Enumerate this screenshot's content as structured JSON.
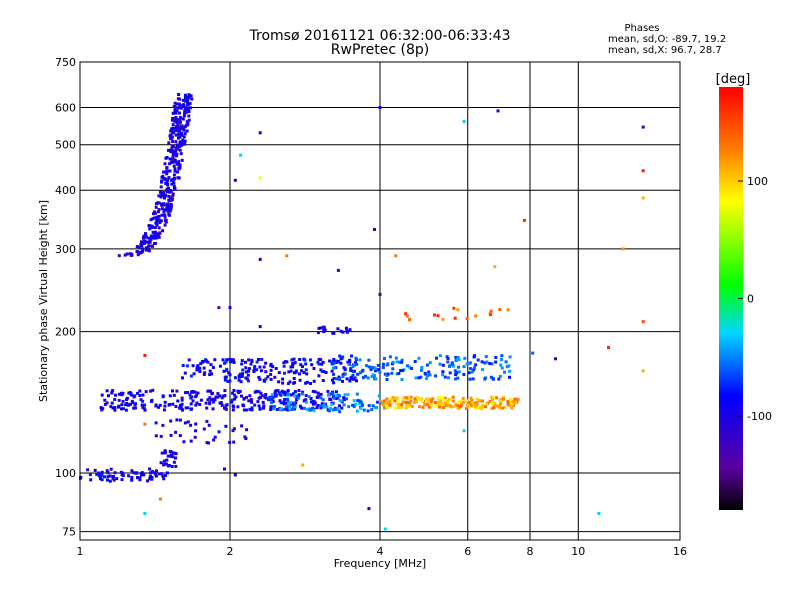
{
  "chart_data": {
    "type": "scatter",
    "title": "Tromsø 20161121 06:32:00-06:33:43",
    "subtitle": "RwPretec (8p)",
    "xlabel": "Frequency [MHz]",
    "ylabel": "Stationary phase Virtual Height [km]",
    "x_scale": "log",
    "y_scale": "log",
    "xlim": [
      1,
      16
    ],
    "ylim": [
      72,
      750
    ],
    "x_ticks": [
      {
        "value": 1,
        "label": "1"
      },
      {
        "value": 2,
        "label": "2"
      },
      {
        "value": 4,
        "label": "4"
      },
      {
        "value": 6,
        "label": "6"
      },
      {
        "value": 8,
        "label": "8"
      },
      {
        "value": 10,
        "label": "10"
      },
      {
        "value": 16,
        "label": "16"
      }
    ],
    "y_ticks": [
      {
        "value": 75,
        "label": "75"
      },
      {
        "value": 100,
        "label": "100"
      },
      {
        "value": 200,
        "label": "200"
      },
      {
        "value": 300,
        "label": "300"
      },
      {
        "value": 400,
        "label": "400"
      },
      {
        "value": 500,
        "label": "500"
      },
      {
        "value": 600,
        "label": "600"
      },
      {
        "value": 750,
        "label": "750"
      }
    ],
    "grid": true,
    "phase_stats": {
      "title": "Phases",
      "line_o": "mean, sd,O: -89.7, 19.2",
      "line_x": "mean, sd,X:  96.7, 28.7"
    },
    "colorbar": {
      "label": "[deg]",
      "range": [
        -180,
        180
      ],
      "ticks": [
        {
          "value": 100,
          "label": "100"
        },
        {
          "value": 0,
          "label": "0"
        },
        {
          "value": -100,
          "label": "-100"
        }
      ],
      "colors": [
        "#000000",
        "#5a00a0",
        "#0000ff",
        "#00d8ff",
        "#00ff00",
        "#ffff00",
        "#ff8000",
        "#ff0000"
      ]
    },
    "clusters": [
      {
        "name": "E-layer trace",
        "x": [
          1.0,
          1.5
        ],
        "y": [
          96,
          102
        ],
        "phase": -95,
        "count": 70
      },
      {
        "name": "Es spread low",
        "x": [
          1.45,
          1.56
        ],
        "y": [
          103,
          112
        ],
        "phase": -100,
        "count": 25
      },
      {
        "name": "F-layer O trace",
        "x": [
          1.22,
          1.62
        ],
        "y": [
          290,
          640
        ],
        "phase": -100,
        "count": 380
      },
      {
        "name": "Spread 140 km blue",
        "x": [
          1.1,
          3.4
        ],
        "y": [
          136,
          150
        ],
        "phase": -95,
        "count": 300
      },
      {
        "name": "Spread 160 km blue",
        "x": [
          1.6,
          3.6
        ],
        "y": [
          155,
          175
        ],
        "phase": -90,
        "count": 200
      },
      {
        "name": "Spread 140 km cyan",
        "x": [
          2.4,
          4.1
        ],
        "y": [
          135,
          148
        ],
        "phase": -50,
        "count": 90
      },
      {
        "name": "Spread 140 km yellow",
        "x": [
          4.0,
          7.6
        ],
        "y": [
          137,
          145
        ],
        "phase": 110,
        "count": 200
      },
      {
        "name": "Band 165 km mixed",
        "x": [
          3.2,
          7.3
        ],
        "y": [
          158,
          178
        ],
        "phase": -60,
        "count": 170
      },
      {
        "name": "Band 220 km orange",
        "x": [
          4.5,
          7.8
        ],
        "y": [
          212,
          225
        ],
        "phase": 140,
        "count": 16
      },
      {
        "name": "Band 200 km blue",
        "x": [
          3.0,
          3.5
        ],
        "y": [
          198,
          205
        ],
        "phase": -95,
        "count": 18
      },
      {
        "name": "Spread 120 km",
        "x": [
          1.4,
          2.2
        ],
        "y": [
          115,
          130
        ],
        "phase": -100,
        "count": 35
      }
    ],
    "outliers": [
      {
        "x": 2.3,
        "y": 530,
        "phase": -100
      },
      {
        "x": 4.0,
        "y": 600,
        "phase": -100
      },
      {
        "x": 5.9,
        "y": 560,
        "phase": -30
      },
      {
        "x": 6.9,
        "y": 590,
        "phase": -110
      },
      {
        "x": 13.5,
        "y": 545,
        "phase": -110
      },
      {
        "x": 13.5,
        "y": 440,
        "phase": 170
      },
      {
        "x": 13.5,
        "y": 385,
        "phase": 110
      },
      {
        "x": 12.3,
        "y": 300,
        "phase": 120
      },
      {
        "x": 13.5,
        "y": 210,
        "phase": 150
      },
      {
        "x": 13.5,
        "y": 165,
        "phase": 110
      },
      {
        "x": 2.3,
        "y": 425,
        "phase": 80
      },
      {
        "x": 2.1,
        "y": 475,
        "phase": -30
      },
      {
        "x": 2.05,
        "y": 420,
        "phase": -100
      },
      {
        "x": 3.9,
        "y": 330,
        "phase": -120
      },
      {
        "x": 3.3,
        "y": 270,
        "phase": -110
      },
      {
        "x": 2.3,
        "y": 285,
        "phase": -100
      },
      {
        "x": 2.6,
        "y": 290,
        "phase": 130
      },
      {
        "x": 4.3,
        "y": 290,
        "phase": 130
      },
      {
        "x": 6.8,
        "y": 275,
        "phase": 110
      },
      {
        "x": 7.8,
        "y": 345,
        "phase": 160
      },
      {
        "x": 4.0,
        "y": 240,
        "phase": -110
      },
      {
        "x": 1.9,
        "y": 225,
        "phase": -140
      },
      {
        "x": 2.0,
        "y": 225,
        "phase": -100
      },
      {
        "x": 2.3,
        "y": 205,
        "phase": -100
      },
      {
        "x": 9.0,
        "y": 175,
        "phase": -120
      },
      {
        "x": 11.5,
        "y": 185,
        "phase": 160
      },
      {
        "x": 8.1,
        "y": 180,
        "phase": -60
      },
      {
        "x": 1.35,
        "y": 178,
        "phase": 170
      },
      {
        "x": 1.4,
        "y": 150,
        "phase": -100
      },
      {
        "x": 1.35,
        "y": 127,
        "phase": 130
      },
      {
        "x": 1.45,
        "y": 88,
        "phase": 130
      },
      {
        "x": 1.35,
        "y": 82,
        "phase": -30
      },
      {
        "x": 1.95,
        "y": 102,
        "phase": -100
      },
      {
        "x": 2.05,
        "y": 99,
        "phase": -100
      },
      {
        "x": 2.8,
        "y": 104,
        "phase": 110
      },
      {
        "x": 3.8,
        "y": 84,
        "phase": -100
      },
      {
        "x": 5.9,
        "y": 123,
        "phase": -30
      },
      {
        "x": 11.0,
        "y": 82,
        "phase": -30
      },
      {
        "x": 4.1,
        "y": 76,
        "phase": -30
      }
    ]
  }
}
